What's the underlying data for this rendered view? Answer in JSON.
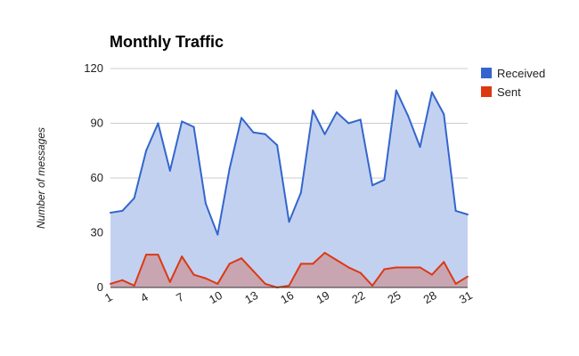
{
  "chart_data": {
    "type": "area",
    "title": "Monthly Traffic",
    "xlabel": "",
    "ylabel": "Number of messages",
    "x": [
      1,
      2,
      3,
      4,
      5,
      6,
      7,
      8,
      9,
      10,
      11,
      12,
      13,
      14,
      15,
      16,
      17,
      18,
      19,
      20,
      21,
      22,
      23,
      24,
      25,
      26,
      27,
      28,
      29,
      30,
      31
    ],
    "xticks": [
      "1",
      "4",
      "7",
      "10",
      "13",
      "16",
      "19",
      "22",
      "25",
      "28",
      "31"
    ],
    "xlim": [
      1,
      31
    ],
    "ylim": [
      0,
      120
    ],
    "yticks": [
      "0",
      "30",
      "60",
      "90",
      "120"
    ],
    "grid": true,
    "legend_position": "right",
    "series": [
      {
        "name": "Received",
        "color": "#3366cc",
        "fill": "#c3d1f1",
        "values": [
          41,
          42,
          49,
          75,
          90,
          64,
          91,
          88,
          46,
          29,
          65,
          93,
          85,
          84,
          78,
          36,
          52,
          97,
          84,
          96,
          90,
          92,
          56,
          59,
          108,
          94,
          77,
          107,
          95,
          42,
          40
        ]
      },
      {
        "name": "Sent",
        "color": "#dc3912",
        "fill": "#c9a5b2",
        "values": [
          2,
          4,
          1,
          18,
          18,
          3,
          17,
          7,
          5,
          2,
          13,
          16,
          9,
          2,
          0,
          1,
          13,
          13,
          19,
          15,
          11,
          8,
          1,
          10,
          11,
          11,
          11,
          7,
          14,
          2,
          6
        ]
      }
    ]
  }
}
